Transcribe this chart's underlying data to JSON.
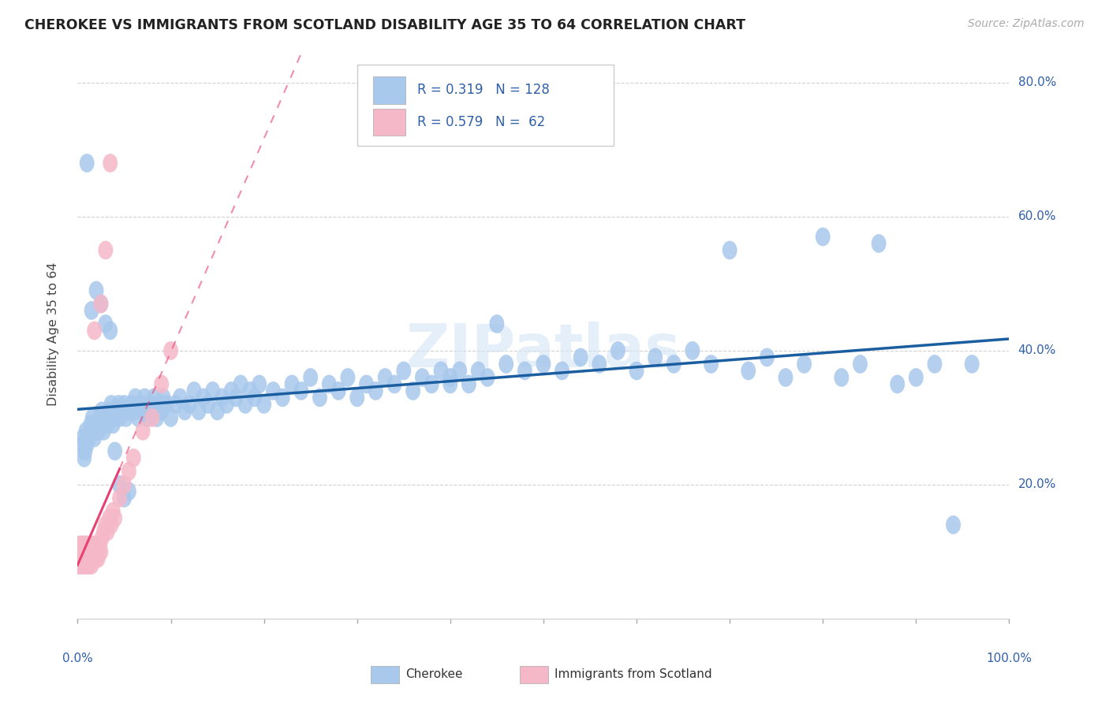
{
  "title": "CHEROKEE VS IMMIGRANTS FROM SCOTLAND DISABILITY AGE 35 TO 64 CORRELATION CHART",
  "source": "Source: ZipAtlas.com",
  "ylabel": "Disability Age 35 to 64",
  "blue_R": 0.319,
  "blue_N": 128,
  "pink_R": 0.579,
  "pink_N": 62,
  "blue_color": "#A8C8EC",
  "pink_color": "#F5B8C8",
  "blue_line_color": "#1B5EA0",
  "pink_line_color": "#E84070",
  "text_color": "#3060A8",
  "title_color": "#222222",
  "xlim": [
    0.0,
    1.0
  ],
  "ylim": [
    0.0,
    0.85
  ],
  "blue_x": [
    0.005,
    0.006,
    0.007,
    0.008,
    0.009,
    0.01,
    0.012,
    0.014,
    0.015,
    0.016,
    0.018,
    0.02,
    0.022,
    0.024,
    0.025,
    0.026,
    0.028,
    0.03,
    0.032,
    0.034,
    0.035,
    0.036,
    0.038,
    0.04,
    0.042,
    0.044,
    0.045,
    0.048,
    0.05,
    0.052,
    0.055,
    0.058,
    0.06,
    0.062,
    0.065,
    0.068,
    0.07,
    0.072,
    0.075,
    0.078,
    0.08,
    0.082,
    0.085,
    0.088,
    0.09,
    0.092,
    0.095,
    0.1,
    0.105,
    0.11,
    0.115,
    0.12,
    0.125,
    0.13,
    0.135,
    0.14,
    0.145,
    0.15,
    0.155,
    0.16,
    0.165,
    0.17,
    0.175,
    0.18,
    0.185,
    0.19,
    0.195,
    0.2,
    0.21,
    0.22,
    0.23,
    0.24,
    0.25,
    0.26,
    0.27,
    0.28,
    0.29,
    0.3,
    0.31,
    0.32,
    0.33,
    0.34,
    0.35,
    0.36,
    0.37,
    0.38,
    0.39,
    0.4,
    0.41,
    0.42,
    0.43,
    0.44,
    0.46,
    0.48,
    0.5,
    0.52,
    0.54,
    0.56,
    0.58,
    0.6,
    0.62,
    0.64,
    0.66,
    0.68,
    0.7,
    0.72,
    0.74,
    0.76,
    0.78,
    0.8,
    0.82,
    0.84,
    0.86,
    0.88,
    0.9,
    0.92,
    0.94,
    0.96,
    0.01,
    0.015,
    0.02,
    0.025,
    0.03,
    0.035,
    0.04,
    0.045,
    0.05,
    0.055,
    0.4,
    0.45
  ],
  "blue_y": [
    0.26,
    0.27,
    0.24,
    0.25,
    0.28,
    0.26,
    0.27,
    0.29,
    0.28,
    0.3,
    0.27,
    0.29,
    0.28,
    0.3,
    0.29,
    0.31,
    0.28,
    0.3,
    0.29,
    0.31,
    0.3,
    0.32,
    0.29,
    0.3,
    0.31,
    0.32,
    0.3,
    0.31,
    0.32,
    0.3,
    0.31,
    0.32,
    0.31,
    0.33,
    0.3,
    0.32,
    0.31,
    0.33,
    0.3,
    0.32,
    0.31,
    0.33,
    0.3,
    0.32,
    0.31,
    0.33,
    0.32,
    0.3,
    0.32,
    0.33,
    0.31,
    0.32,
    0.34,
    0.31,
    0.33,
    0.32,
    0.34,
    0.31,
    0.33,
    0.32,
    0.34,
    0.33,
    0.35,
    0.32,
    0.34,
    0.33,
    0.35,
    0.32,
    0.34,
    0.33,
    0.35,
    0.34,
    0.36,
    0.33,
    0.35,
    0.34,
    0.36,
    0.33,
    0.35,
    0.34,
    0.36,
    0.35,
    0.37,
    0.34,
    0.36,
    0.35,
    0.37,
    0.35,
    0.37,
    0.35,
    0.37,
    0.36,
    0.38,
    0.37,
    0.38,
    0.37,
    0.39,
    0.38,
    0.4,
    0.37,
    0.39,
    0.38,
    0.4,
    0.38,
    0.55,
    0.37,
    0.39,
    0.36,
    0.38,
    0.57,
    0.36,
    0.38,
    0.56,
    0.35,
    0.36,
    0.38,
    0.14,
    0.38,
    0.68,
    0.46,
    0.49,
    0.47,
    0.44,
    0.43,
    0.25,
    0.2,
    0.18,
    0.19,
    0.36,
    0.44
  ],
  "pink_x": [
    0.001,
    0.001,
    0.002,
    0.002,
    0.003,
    0.003,
    0.004,
    0.004,
    0.005,
    0.005,
    0.006,
    0.006,
    0.007,
    0.007,
    0.008,
    0.008,
    0.009,
    0.009,
    0.01,
    0.01,
    0.011,
    0.011,
    0.012,
    0.012,
    0.013,
    0.013,
    0.014,
    0.015,
    0.015,
    0.016,
    0.016,
    0.017,
    0.018,
    0.018,
    0.019,
    0.02,
    0.02,
    0.021,
    0.022,
    0.023,
    0.024,
    0.025,
    0.026,
    0.028,
    0.03,
    0.032,
    0.034,
    0.036,
    0.038,
    0.04,
    0.045,
    0.05,
    0.055,
    0.06,
    0.07,
    0.08,
    0.09,
    0.1,
    0.018,
    0.025,
    0.03,
    0.035
  ],
  "pink_y": [
    0.08,
    0.1,
    0.09,
    0.11,
    0.08,
    0.1,
    0.09,
    0.11,
    0.08,
    0.1,
    0.09,
    0.11,
    0.08,
    0.1,
    0.09,
    0.11,
    0.08,
    0.1,
    0.09,
    0.11,
    0.08,
    0.1,
    0.09,
    0.11,
    0.08,
    0.1,
    0.09,
    0.08,
    0.1,
    0.09,
    0.11,
    0.1,
    0.09,
    0.11,
    0.1,
    0.09,
    0.11,
    0.1,
    0.09,
    0.1,
    0.11,
    0.1,
    0.12,
    0.13,
    0.14,
    0.13,
    0.15,
    0.14,
    0.16,
    0.15,
    0.18,
    0.2,
    0.22,
    0.24,
    0.28,
    0.3,
    0.35,
    0.4,
    0.43,
    0.47,
    0.55,
    0.68
  ]
}
